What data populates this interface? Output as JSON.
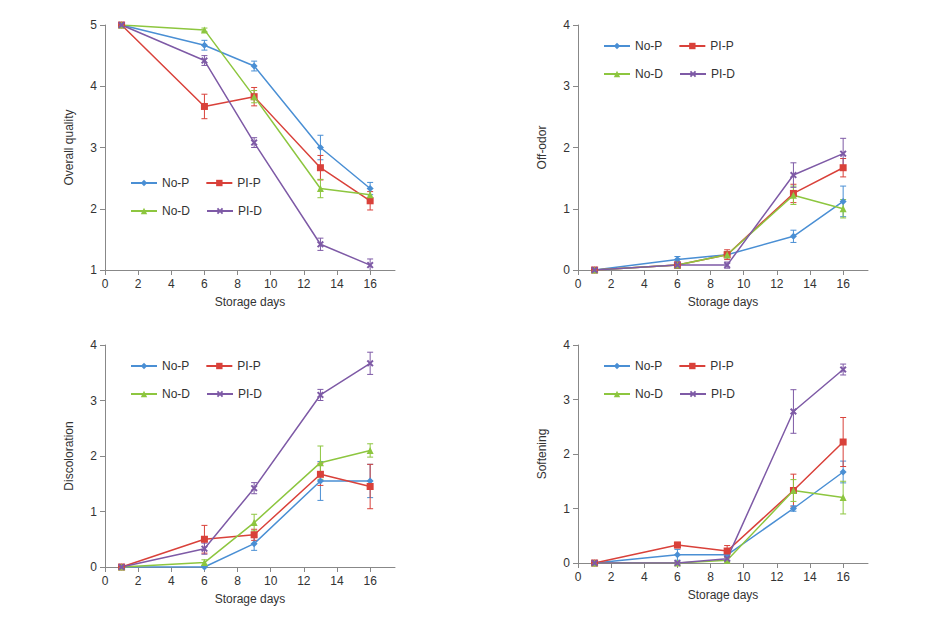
{
  "chart_data": [
    {
      "type": "line",
      "y_label": "Overall quality",
      "x_label": "Storage days",
      "x": [
        1,
        6,
        9,
        13,
        16
      ],
      "xlim": [
        0,
        17.5
      ],
      "xticks": [
        0,
        2,
        4,
        6,
        8,
        10,
        12,
        14,
        16
      ],
      "ylim": [
        1,
        5
      ],
      "yticks": [
        1,
        2,
        3,
        4,
        5
      ],
      "grid": false,
      "legend": "lower left",
      "series": [
        {
          "name": "No-P",
          "color": "#4a8fd4",
          "marker": "diamond",
          "values": [
            5,
            4.67,
            4.33,
            3.0,
            2.33
          ],
          "errors": [
            0,
            0.08,
            0.08,
            0.2,
            0.1
          ]
        },
        {
          "name": "PI-P",
          "color": "#d9413a",
          "marker": "square",
          "values": [
            5,
            3.67,
            3.83,
            2.67,
            2.13
          ],
          "errors": [
            0,
            0.2,
            0.15,
            0.2,
            0.15
          ]
        },
        {
          "name": "No-D",
          "color": "#8dc63f",
          "marker": "triangle",
          "values": [
            5,
            4.92,
            3.83,
            2.33,
            2.23
          ],
          "errors": [
            0,
            0.03,
            0.1,
            0.15,
            0.1
          ]
        },
        {
          "name": "PI-D",
          "color": "#7e5aa6",
          "marker": "x",
          "values": [
            5,
            4.42,
            3.08,
            1.42,
            1.08
          ],
          "errors": [
            0,
            0.08,
            0.08,
            0.1,
            0.1
          ]
        }
      ]
    },
    {
      "type": "line",
      "y_label": "Off-odor",
      "x_label": "Storage days",
      "x": [
        1,
        6,
        9,
        13,
        16
      ],
      "xlim": [
        0,
        17.5
      ],
      "xticks": [
        0,
        2,
        4,
        6,
        8,
        10,
        12,
        14,
        16
      ],
      "ylim": [
        0,
        4
      ],
      "yticks": [
        0,
        1,
        2,
        3,
        4
      ],
      "grid": false,
      "legend": "upper left",
      "series": [
        {
          "name": "No-P",
          "color": "#4a8fd4",
          "marker": "diamond",
          "values": [
            0,
            0.17,
            0.25,
            0.55,
            1.12
          ],
          "errors": [
            0,
            0.05,
            0.05,
            0.1,
            0.25
          ]
        },
        {
          "name": "PI-P",
          "color": "#d9413a",
          "marker": "square",
          "values": [
            0,
            0.08,
            0.25,
            1.25,
            1.67
          ],
          "errors": [
            0,
            0.05,
            0.08,
            0.15,
            0.15
          ]
        },
        {
          "name": "No-D",
          "color": "#8dc63f",
          "marker": "triangle",
          "values": [
            0,
            0.08,
            0.25,
            1.22,
            1.0
          ],
          "errors": [
            0,
            0.05,
            0.05,
            0.15,
            0.15
          ]
        },
        {
          "name": "PI-D",
          "color": "#7e5aa6",
          "marker": "x",
          "values": [
            0,
            0.08,
            0.08,
            1.55,
            1.9
          ],
          "errors": [
            0,
            0.05,
            0.05,
            0.2,
            0.25
          ]
        }
      ]
    },
    {
      "type": "line",
      "y_label": "Discoloration",
      "x_label": "Storage days",
      "x": [
        1,
        6,
        9,
        13,
        16
      ],
      "xlim": [
        0,
        17.5
      ],
      "xticks": [
        0,
        2,
        4,
        6,
        8,
        10,
        12,
        14,
        16
      ],
      "ylim": [
        0,
        4
      ],
      "yticks": [
        0,
        1,
        2,
        3,
        4
      ],
      "grid": false,
      "legend": "upper left",
      "series": [
        {
          "name": "No-P",
          "color": "#4a8fd4",
          "marker": "diamond",
          "values": [
            0,
            0,
            0.42,
            1.55,
            1.55
          ],
          "errors": [
            0,
            0,
            0.12,
            0.35,
            0.3
          ]
        },
        {
          "name": "PI-P",
          "color": "#d9413a",
          "marker": "square",
          "values": [
            0,
            0.5,
            0.58,
            1.67,
            1.45
          ],
          "errors": [
            0,
            0.25,
            0.1,
            0.2,
            0.4
          ]
        },
        {
          "name": "No-D",
          "color": "#8dc63f",
          "marker": "triangle",
          "values": [
            0,
            0.08,
            0.8,
            1.88,
            2.1
          ],
          "errors": [
            0,
            0.05,
            0.15,
            0.3,
            0.12
          ]
        },
        {
          "name": "PI-D",
          "color": "#7e5aa6",
          "marker": "x",
          "values": [
            0,
            0.33,
            1.42,
            3.1,
            3.67
          ],
          "errors": [
            0,
            0.1,
            0.1,
            0.1,
            0.2
          ]
        }
      ]
    },
    {
      "type": "line",
      "y_label": "Softening",
      "x_label": "Storage days",
      "x": [
        1,
        6,
        9,
        13,
        16
      ],
      "xlim": [
        0,
        17.5
      ],
      "xticks": [
        0,
        2,
        4,
        6,
        8,
        10,
        12,
        14,
        16
      ],
      "ylim": [
        0,
        4
      ],
      "yticks": [
        0,
        1,
        2,
        3,
        4
      ],
      "grid": false,
      "legend": "upper left",
      "series": [
        {
          "name": "No-P",
          "color": "#4a8fd4",
          "marker": "diamond",
          "values": [
            0,
            0.15,
            0.15,
            1.0,
            1.67
          ],
          "errors": [
            0,
            0.1,
            0.1,
            0.05,
            0.2
          ]
        },
        {
          "name": "PI-P",
          "color": "#d9413a",
          "marker": "square",
          "values": [
            0,
            0.33,
            0.22,
            1.33,
            2.22
          ],
          "errors": [
            0,
            0.05,
            0.1,
            0.3,
            0.45
          ]
        },
        {
          "name": "No-D",
          "color": "#8dc63f",
          "marker": "triangle",
          "values": [
            0,
            0,
            0.05,
            1.33,
            1.2
          ],
          "errors": [
            0,
            0,
            0.05,
            0.2,
            0.3
          ]
        },
        {
          "name": "PI-D",
          "color": "#7e5aa6",
          "marker": "x",
          "values": [
            0,
            0,
            0.08,
            2.78,
            3.55
          ],
          "errors": [
            0,
            0,
            0.05,
            0.4,
            0.1
          ]
        }
      ]
    }
  ]
}
